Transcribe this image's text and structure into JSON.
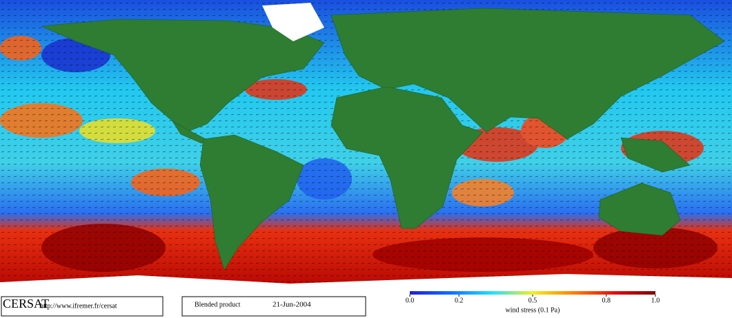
{
  "footer": {
    "logo": "CERSAT",
    "url": "http://www.ifremer.fr/cersat",
    "product": "Blended product",
    "date": "21-Jun-2004"
  },
  "colorbar": {
    "title": "wind stress (0.1 Pa)",
    "lim": [
      0,
      1
    ],
    "ticks": [
      {
        "value": 0,
        "label": "0.0"
      },
      0.2,
      0.5,
      0.8,
      {
        "value": 1,
        "label": "1.0"
      }
    ],
    "colors": [
      "#2020d0",
      "#1070ff",
      "#20e0ff",
      "#f0f020",
      "#ff8000",
      "#e01010",
      "#800000"
    ]
  }
}
